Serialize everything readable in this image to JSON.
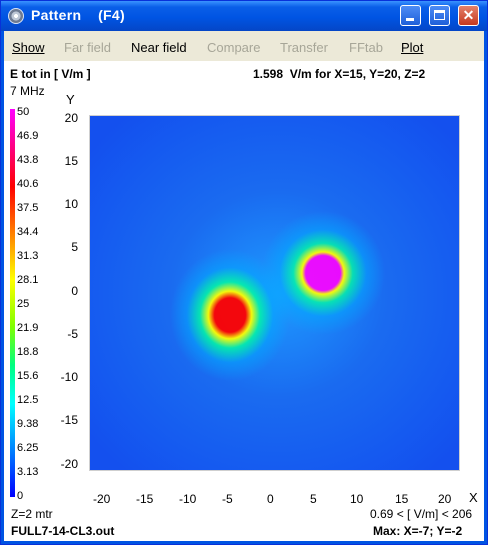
{
  "window": {
    "title": "Pattern    (F4)"
  },
  "menu": {
    "items": [
      {
        "label": "Show",
        "enabled": true
      },
      {
        "label": "Far field",
        "enabled": false
      },
      {
        "label": "Near field",
        "enabled": true
      },
      {
        "label": "Compare",
        "enabled": false
      },
      {
        "label": "Transfer",
        "enabled": false
      },
      {
        "label": "FFtab",
        "enabled": false
      },
      {
        "label": "Plot",
        "enabled": true
      }
    ]
  },
  "header": {
    "quantity": "E tot in [ V/m ]",
    "value_at_point": "1.598  V/m for X=15, Y=20, Z=2",
    "frequency": "7 MHz"
  },
  "legend": {
    "values": [
      "50",
      "46.9",
      "43.8",
      "40.6",
      "37.5",
      "34.4",
      "31.3",
      "28.1",
      "25",
      "21.9",
      "18.8",
      "15.6",
      "12.5",
      "9.38",
      "6.25",
      "3.13",
      "0"
    ]
  },
  "axes": {
    "x_label": "X",
    "y_label": "Y",
    "x_ticks": [
      "-20",
      "-15",
      "-10",
      "-5",
      "0",
      "5",
      "10",
      "15",
      "20"
    ],
    "y_ticks": [
      "20",
      "15",
      "10",
      "5",
      "0",
      "-5",
      "-10",
      "-15",
      "-20"
    ]
  },
  "footer": {
    "z_level": "Z=2 mtr",
    "range": "0.69 < [ V/m] < 206",
    "file": "FULL7-14-CL3.out",
    "max_location": "Max: X=-7; Y=-2"
  },
  "colors": {
    "title_bar": "#0054E3",
    "menu_bg": "#ECE9D8",
    "field_low": "#1450EE",
    "field_high": "#FF00FF"
  }
}
